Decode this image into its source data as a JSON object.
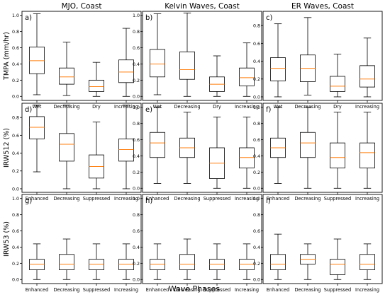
{
  "chart_data": [
    {
      "type": "boxplot",
      "panel_letter": "a)",
      "title": "MJO, Coast",
      "ylabel": "TMPA (mm/hr)",
      "categories": [
        "Wet",
        "Decreasing",
        "Dry",
        "Increasing"
      ],
      "yticks": [
        "0.0",
        "0.2",
        "0.4",
        "0.6",
        "0.8",
        "1.0"
      ],
      "ylim": [
        -0.05,
        1.05
      ],
      "boxes": [
        {
          "whislo": 0.02,
          "q1": 0.28,
          "med": 0.44,
          "q3": 0.61,
          "whishi": 1.02
        },
        {
          "whislo": 0.01,
          "q1": 0.15,
          "med": 0.24,
          "q3": 0.35,
          "whishi": 0.67
        },
        {
          "whislo": 0.0,
          "q1": 0.06,
          "med": 0.12,
          "q3": 0.2,
          "whishi": 0.42
        },
        {
          "whislo": 0.0,
          "q1": 0.17,
          "med": 0.3,
          "q3": 0.45,
          "whishi": 0.84
        }
      ]
    },
    {
      "type": "boxplot",
      "panel_letter": "b)",
      "title": "Kelvin Waves, Coast",
      "ylabel": "",
      "categories": [
        "Wet",
        "Decreasing",
        "Dry",
        "Increasing"
      ],
      "yticks": [
        "0.0",
        "0.2",
        "0.4",
        "0.6",
        "0.8",
        "1.0"
      ],
      "ylim": [
        -0.05,
        1.05
      ],
      "boxes": [
        {
          "whislo": 0.02,
          "q1": 0.24,
          "med": 0.4,
          "q3": 0.58,
          "whishi": 1.02
        },
        {
          "whislo": 0.0,
          "q1": 0.21,
          "med": 0.33,
          "q3": 0.55,
          "whishi": 1.03
        },
        {
          "whislo": 0.0,
          "q1": 0.06,
          "med": 0.15,
          "q3": 0.24,
          "whishi": 0.5
        },
        {
          "whislo": 0.0,
          "q1": 0.13,
          "med": 0.23,
          "q3": 0.35,
          "whishi": 0.66
        }
      ]
    },
    {
      "type": "boxplot",
      "panel_letter": "c)",
      "title": "ER Waves, Coast",
      "ylabel": "",
      "categories": [
        "Wet",
        "Decreasing",
        "Dry",
        "Increasing"
      ],
      "yticks": [
        "0.0",
        "0.2",
        "0.4",
        "0.6",
        "0.8"
      ],
      "ylim": [
        -0.04,
        0.96
      ],
      "boxes": [
        {
          "whislo": 0.0,
          "q1": 0.18,
          "med": 0.32,
          "q3": 0.44,
          "whishi": 0.82
        },
        {
          "whislo": 0.02,
          "q1": 0.17,
          "med": 0.32,
          "q3": 0.47,
          "whishi": 0.89
        },
        {
          "whislo": 0.0,
          "q1": 0.06,
          "med": 0.12,
          "q3": 0.23,
          "whishi": 0.48
        },
        {
          "whislo": 0.0,
          "q1": 0.11,
          "med": 0.2,
          "q3": 0.35,
          "whishi": 0.66
        }
      ]
    },
    {
      "type": "boxplot",
      "panel_letter": "d)",
      "title": "",
      "ylabel": "IRW512 (%)",
      "categories": [
        "Enhanced",
        "Decreasing",
        "Suppressed",
        "Increasing"
      ],
      "yticks": [
        "0.0",
        "0.2",
        "0.4",
        "0.6",
        "0.8"
      ],
      "ylim": [
        -0.04,
        0.96
      ],
      "boxes": [
        {
          "whislo": 0.19,
          "q1": 0.56,
          "med": 0.69,
          "q3": 0.81,
          "whishi": 0.94
        },
        {
          "whislo": 0.0,
          "q1": 0.31,
          "med": 0.5,
          "q3": 0.62,
          "whishi": 0.94
        },
        {
          "whislo": 0.0,
          "q1": 0.12,
          "med": 0.25,
          "q3": 0.38,
          "whishi": 0.75
        },
        {
          "whislo": 0.0,
          "q1": 0.31,
          "med": 0.44,
          "q3": 0.56,
          "whishi": 0.94
        }
      ]
    },
    {
      "type": "boxplot",
      "panel_letter": "e)",
      "title": "",
      "ylabel": "",
      "categories": [
        "Enhanced",
        "Decreasing",
        "Suppressed",
        "Increasing"
      ],
      "yticks": [
        "0.0",
        "0.2",
        "0.4",
        "0.6",
        "0.8",
        "1.0"
      ],
      "ylim": [
        -0.05,
        1.05
      ],
      "boxes": [
        {
          "whislo": 0.06,
          "q1": 0.38,
          "med": 0.56,
          "q3": 0.69,
          "whishi": 1.0
        },
        {
          "whislo": 0.06,
          "q1": 0.38,
          "med": 0.5,
          "q3": 0.62,
          "whishi": 0.94
        },
        {
          "whislo": 0.0,
          "q1": 0.12,
          "med": 0.31,
          "q3": 0.5,
          "whishi": 0.88
        },
        {
          "whislo": 0.0,
          "q1": 0.25,
          "med": 0.38,
          "q3": 0.5,
          "whishi": 0.88
        }
      ]
    },
    {
      "type": "boxplot",
      "panel_letter": "f)",
      "title": "",
      "ylabel": "",
      "categories": [
        "Enhanced",
        "Decreasing",
        "Suppressed",
        "Increasing"
      ],
      "yticks": [
        "0.0",
        "0.2",
        "0.4",
        "0.6",
        "0.8",
        "1.0"
      ],
      "ylim": [
        -0.05,
        1.05
      ],
      "boxes": [
        {
          "whislo": 0.06,
          "q1": 0.38,
          "med": 0.5,
          "q3": 0.62,
          "whishi": 1.0
        },
        {
          "whislo": 0.0,
          "q1": 0.38,
          "med": 0.56,
          "q3": 0.69,
          "whishi": 1.0
        },
        {
          "whislo": 0.0,
          "q1": 0.25,
          "med": 0.38,
          "q3": 0.56,
          "whishi": 0.94
        },
        {
          "whislo": 0.0,
          "q1": 0.25,
          "med": 0.44,
          "q3": 0.56,
          "whishi": 0.94
        }
      ]
    },
    {
      "type": "boxplot",
      "panel_letter": "g)",
      "title": "",
      "ylabel": "IRW53 (%)",
      "categories": [
        "Enhanced",
        "Decreasing",
        "Suppressed",
        "Increasing"
      ],
      "yticks": [
        "0.0",
        "0.2",
        "0.4",
        "0.6",
        "0.8",
        "1.0"
      ],
      "ylim": [
        -0.05,
        1.05
      ],
      "boxes": [
        {
          "whislo": 0.0,
          "q1": 0.12,
          "med": 0.19,
          "q3": 0.25,
          "whishi": 0.44
        },
        {
          "whislo": 0.0,
          "q1": 0.12,
          "med": 0.19,
          "q3": 0.31,
          "whishi": 0.5
        },
        {
          "whislo": 0.0,
          "q1": 0.12,
          "med": 0.19,
          "q3": 0.25,
          "whishi": 0.44
        },
        {
          "whislo": 0.0,
          "q1": 0.12,
          "med": 0.19,
          "q3": 0.25,
          "whishi": 0.44
        }
      ]
    },
    {
      "type": "boxplot",
      "panel_letter": "h)",
      "title": "",
      "ylabel": "",
      "categories": [
        "Enhanced",
        "Decreasing",
        "Suppressed",
        "Increasing"
      ],
      "yticks": [
        "0.0",
        "0.2",
        "0.4",
        "0.6",
        "0.8",
        "1.0"
      ],
      "ylim": [
        -0.05,
        1.05
      ],
      "boxes": [
        {
          "whislo": 0.0,
          "q1": 0.12,
          "med": 0.19,
          "q3": 0.25,
          "whishi": 0.44
        },
        {
          "whislo": 0.0,
          "q1": 0.12,
          "med": 0.19,
          "q3": 0.31,
          "whishi": 0.5
        },
        {
          "whislo": 0.0,
          "q1": 0.12,
          "med": 0.19,
          "q3": 0.25,
          "whishi": 0.44
        },
        {
          "whislo": 0.0,
          "q1": 0.12,
          "med": 0.19,
          "q3": 0.25,
          "whishi": 0.44
        }
      ]
    },
    {
      "type": "boxplot",
      "panel_letter": "i)",
      "title": "",
      "ylabel": "",
      "categories": [
        "Enhanced",
        "Decreasing",
        "Suppressed",
        "Increasing"
      ],
      "yticks": [
        "0.0",
        "0.2",
        "0.4",
        "0.6",
        "0.8",
        "1.0"
      ],
      "ylim": [
        -0.05,
        1.05
      ],
      "boxes": [
        {
          "whislo": 0.0,
          "q1": 0.12,
          "med": 0.19,
          "q3": 0.31,
          "whishi": 0.56
        },
        {
          "whislo": 0.0,
          "q1": 0.19,
          "med": 0.25,
          "q3": 0.31,
          "whishi": 0.44
        },
        {
          "whislo": 0.0,
          "q1": 0.06,
          "med": 0.19,
          "q3": 0.25,
          "whishi": 0.5
        },
        {
          "whislo": 0.0,
          "q1": 0.12,
          "med": 0.19,
          "q3": 0.31,
          "whishi": 0.44
        }
      ]
    }
  ],
  "xlabel": "Wave Phases",
  "colors": {
    "median": "#ff7f0e",
    "box": "#000000",
    "background": "#ffffff"
  }
}
